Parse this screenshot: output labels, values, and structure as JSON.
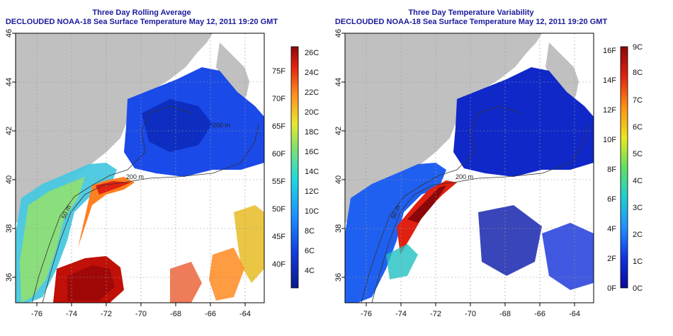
{
  "left_panel": {
    "title_line1": "Three Day Rolling Average",
    "title_line2": "DECLOUDED NOAA-18 Sea Surface Temperature May 12, 2011 19:20 GMT",
    "colorbar_celsius": [
      "26C",
      "24C",
      "22C",
      "20C",
      "18C",
      "16C",
      "14C",
      "12C",
      "10C",
      "8C",
      "6C",
      "4C"
    ],
    "colorbar_fahrenheit": [
      "75F",
      "70F",
      "65F",
      "60F",
      "55F",
      "50F",
      "45F",
      "40F"
    ],
    "contour_labels": [
      "200 m",
      "200 m",
      "50 m"
    ]
  },
  "right_panel": {
    "title_line1": "Three Day Temperature Variability",
    "title_line2": "DECLOUDED NOAA-18 Sea Surface Temperature May 12, 2011 19:20 GMT",
    "colorbar_fahrenheit": [
      "16F",
      "14F",
      "12F",
      "10F",
      "8F",
      "6F",
      "4F",
      "2F",
      "0F"
    ],
    "colorbar_celsius": [
      "9C",
      "8C",
      "7C",
      "6C",
      "5C",
      "4C",
      "3C",
      "2C",
      "1C",
      "0C"
    ],
    "contour_labels": [
      "200 m",
      "50 m"
    ]
  },
  "axes": {
    "x_ticks": [
      "-76",
      "-74",
      "-72",
      "-70",
      "-68",
      "-66",
      "-64"
    ],
    "y_ticks": [
      "46",
      "44",
      "42",
      "40",
      "38",
      "36"
    ]
  },
  "colors": {
    "title": "#1a1a9c",
    "land": "#c0c0c0",
    "no_data": "#ffffff"
  }
}
